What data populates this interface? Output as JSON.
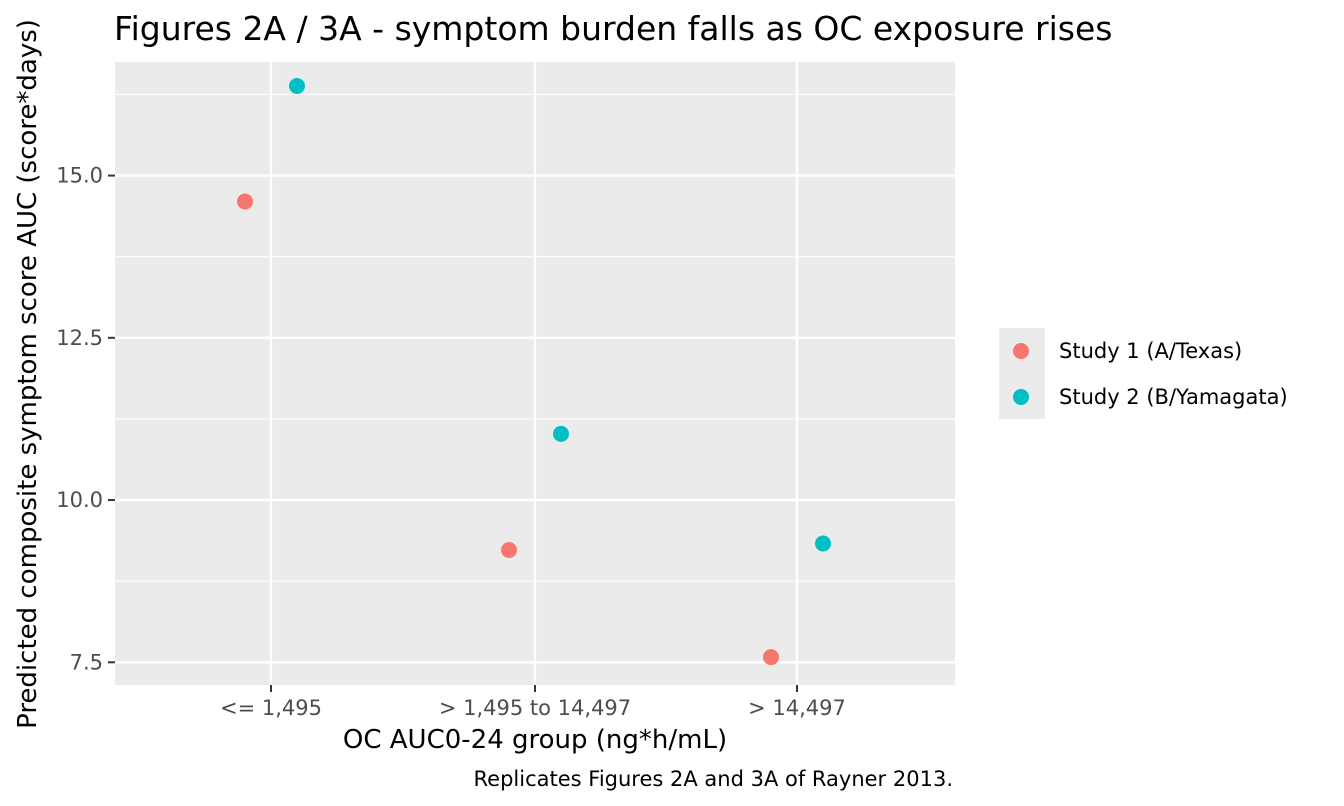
{
  "chart_data": {
    "type": "scatter",
    "title": "Figures 2A / 3A - symptom burden falls as OC exposure rises",
    "xlabel": "OC AUC0-24 group (ng*h/mL)",
    "ylabel": "Predicted composite symptom score AUC (score*days)",
    "caption": "Replicates Figures 2A and 3A of Rayner 2013.",
    "categories": [
      "<= 1,495",
      "> 1,495 to 14,497",
      "> 14,497"
    ],
    "ylim": [
      7.15,
      16.75
    ],
    "yticks": [
      7.5,
      10.0,
      12.5,
      15.0
    ],
    "ytick_labels": [
      "7.5",
      "10.0",
      "12.5",
      "15.0"
    ],
    "grid": true,
    "legend_position": "right",
    "series": [
      {
        "name": "Study 1 (A/Texas)",
        "color": "#F8766D",
        "values": [
          14.6,
          9.23,
          7.58
        ]
      },
      {
        "name": "Study 2 (B/Yamagata)",
        "color": "#00BFC4",
        "values": [
          16.38,
          11.02,
          9.33
        ]
      }
    ]
  }
}
